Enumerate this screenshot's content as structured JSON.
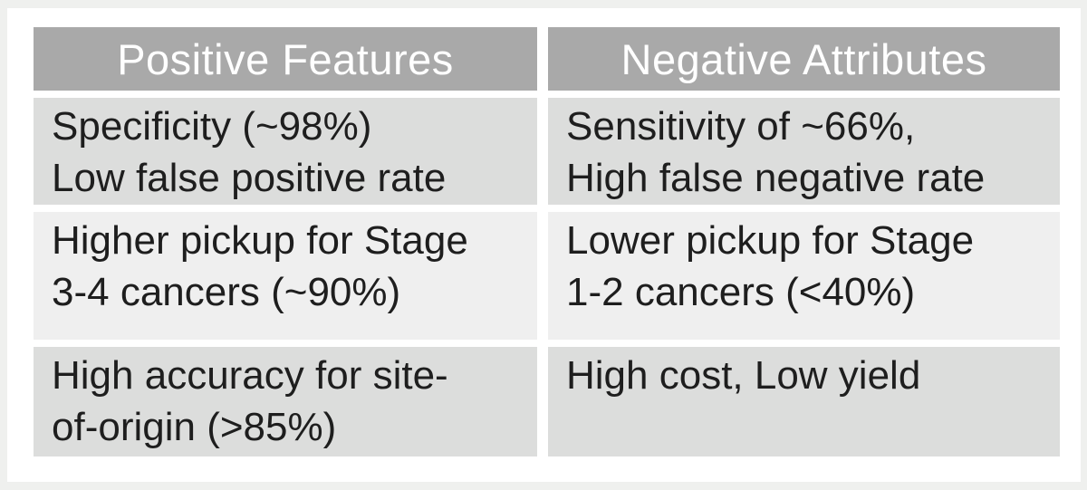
{
  "slide": {
    "table": {
      "headers": [
        "Positive Features",
        "Negative Attributes"
      ],
      "rows": [
        {
          "positive": "Specificity (~98%)\nLow false positive rate",
          "negative": "Sensitivity of ~66%,\nHigh false negative rate"
        },
        {
          "positive": "Higher pickup for Stage\n3-4 cancers (~90%)",
          "negative": "Lower pickup for Stage\n1-2 cancers (<40%)"
        },
        {
          "positive": "High accuracy for site-\nof-origin (>85%)",
          "negative": "High cost, Low yield"
        }
      ]
    },
    "colors": {
      "header_bg": "#a9a9a9",
      "header_text": "#ffffff",
      "row_odd_bg": "#dcdddc",
      "row_even_bg": "#efefef",
      "body_text": "#1e1e1e",
      "gutter": "#ffffff",
      "frame_bg": "#eff0ee"
    }
  }
}
